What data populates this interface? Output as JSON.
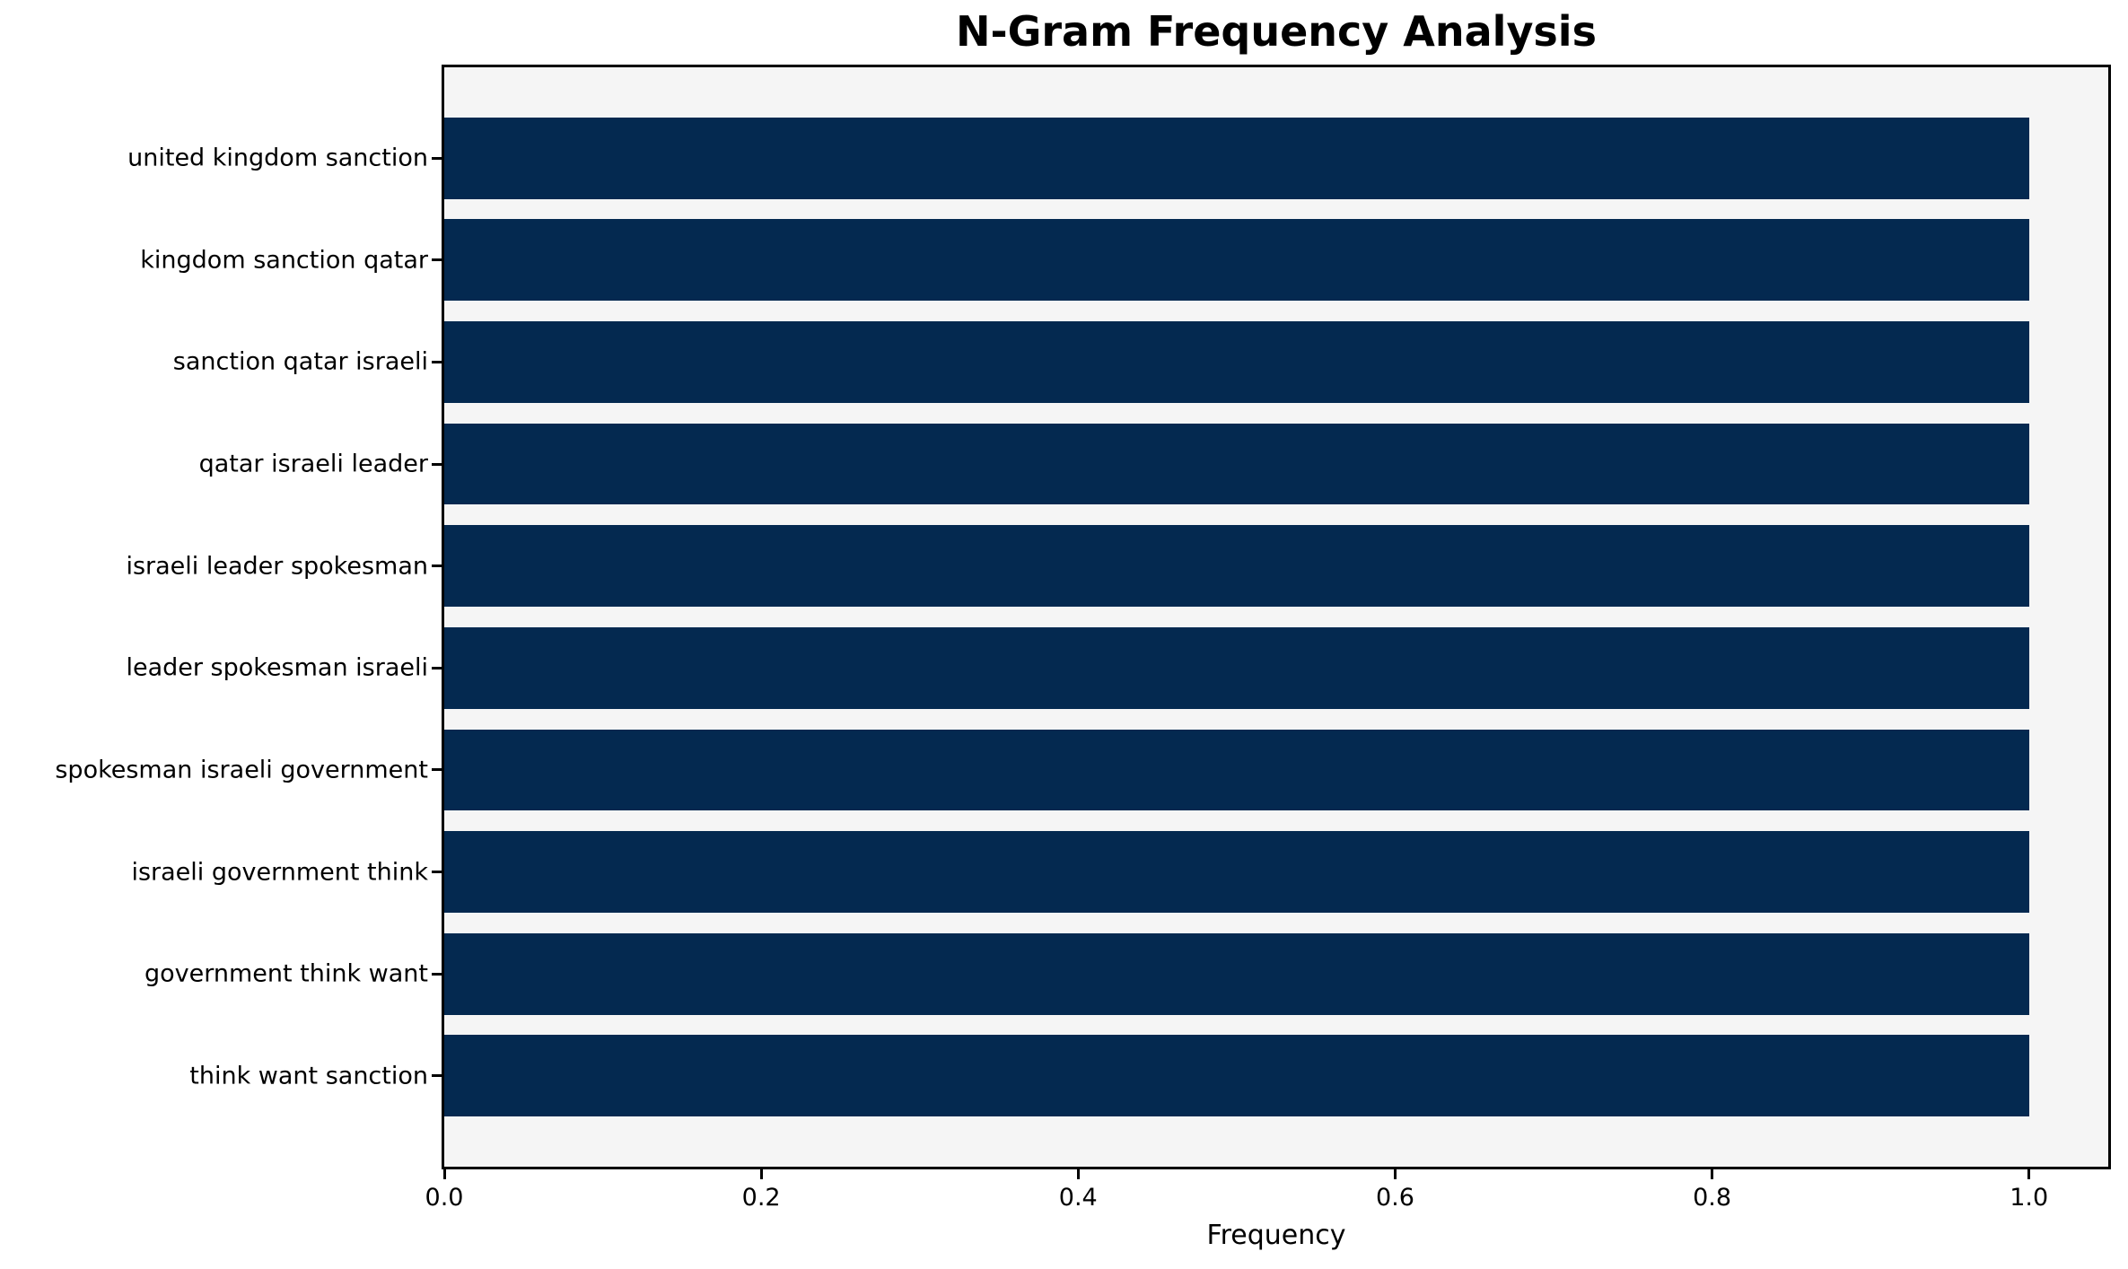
{
  "chart_data": {
    "type": "bar",
    "orientation": "horizontal",
    "title": "N-Gram Frequency Analysis",
    "xlabel": "Frequency",
    "ylabel": "",
    "categories": [
      "united kingdom sanction",
      "kingdom sanction qatar",
      "sanction qatar israeli",
      "qatar israeli leader",
      "israeli leader spokesman",
      "leader spokesman israeli",
      "spokesman israeli government",
      "israeli government think",
      "government think want",
      "think want sanction"
    ],
    "values": [
      1.0,
      1.0,
      1.0,
      1.0,
      1.0,
      1.0,
      1.0,
      1.0,
      1.0,
      1.0
    ],
    "xlim": [
      0,
      1.05
    ],
    "xticks": [
      0.0,
      0.2,
      0.4,
      0.6,
      0.8,
      1.0
    ],
    "xtick_labels": [
      "0.0",
      "0.2",
      "0.4",
      "0.6",
      "0.8",
      "1.0"
    ],
    "grid": false,
    "legend_position": "none",
    "bar_height_fraction": 0.8,
    "colors": {
      "bar": "#042950",
      "plot_background": "#f5f5f5",
      "figure_background": "#ffffff",
      "spine": "#000000",
      "text": "#000000"
    }
  }
}
